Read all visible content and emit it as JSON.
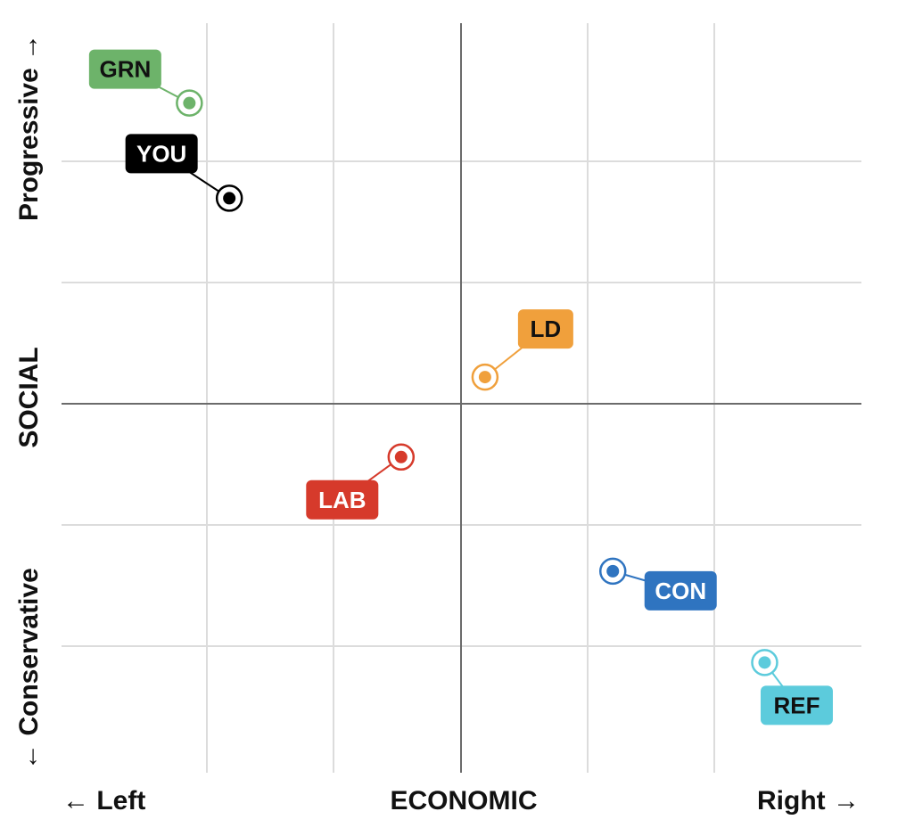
{
  "chart_data": {
    "type": "scatter",
    "xlabel": "ECONOMIC",
    "ylabel": "SOCIAL",
    "x_left_label": "← Left",
    "x_right_label": "Right →",
    "y_top_label": "Progressive →",
    "y_bottom_label": "← Conservative",
    "xlim": [
      -10,
      10
    ],
    "ylim": [
      -10,
      10
    ],
    "grid": true,
    "points": [
      {
        "name": "GRN",
        "x": -6.8,
        "y": 7.9,
        "color": "#6db36a",
        "text_color": "#111111",
        "label_dx": -72,
        "label_dy": -38
      },
      {
        "name": "YOU",
        "x": -5.8,
        "y": 5.4,
        "color": "#000000",
        "text_color": "#ffffff",
        "label_dx": -76,
        "label_dy": -50
      },
      {
        "name": "LD",
        "x": 0.6,
        "y": 0.7,
        "color": "#f0a03c",
        "text_color": "#111111",
        "label_dx": 68,
        "label_dy": -54
      },
      {
        "name": "LAB",
        "x": -1.5,
        "y": -1.4,
        "color": "#d63a2b",
        "text_color": "#ffffff",
        "label_dx": -66,
        "label_dy": 48
      },
      {
        "name": "CON",
        "x": 3.8,
        "y": -4.4,
        "color": "#2f74c0",
        "text_color": "#ffffff",
        "label_dx": 76,
        "label_dy": 22
      },
      {
        "name": "REF",
        "x": 7.6,
        "y": -6.8,
        "color": "#5ccbdc",
        "text_color": "#111111",
        "label_dx": 36,
        "label_dy": 48
      }
    ]
  }
}
